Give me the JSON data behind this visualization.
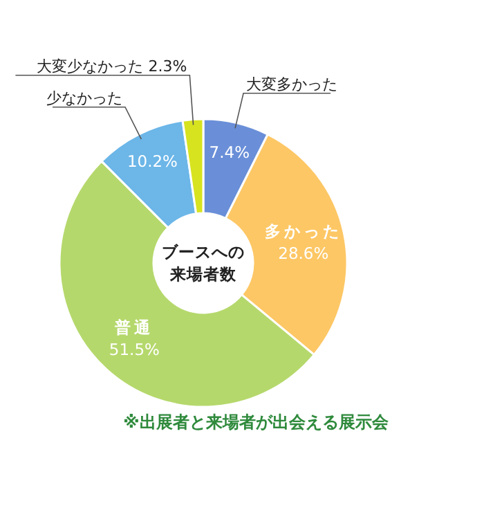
{
  "chart_data": {
    "type": "donut",
    "title": "ブースへの来場者数",
    "categories": [
      "大変多かった",
      "多かった",
      "普通",
      "少なかった",
      "大変少なかった"
    ],
    "values": [
      7.4,
      28.6,
      51.5,
      10.2,
      2.3
    ],
    "value_labels": [
      "7.4%",
      "28.6%",
      "51.5%",
      "10.2%",
      "2.3%"
    ],
    "colors": [
      "#6a8fd8",
      "#fdc765",
      "#b5d86c",
      "#6cb6e8",
      "#d7e31f"
    ],
    "annotations": [
      "※出展者と来場者が出会える展示会"
    ]
  }
}
